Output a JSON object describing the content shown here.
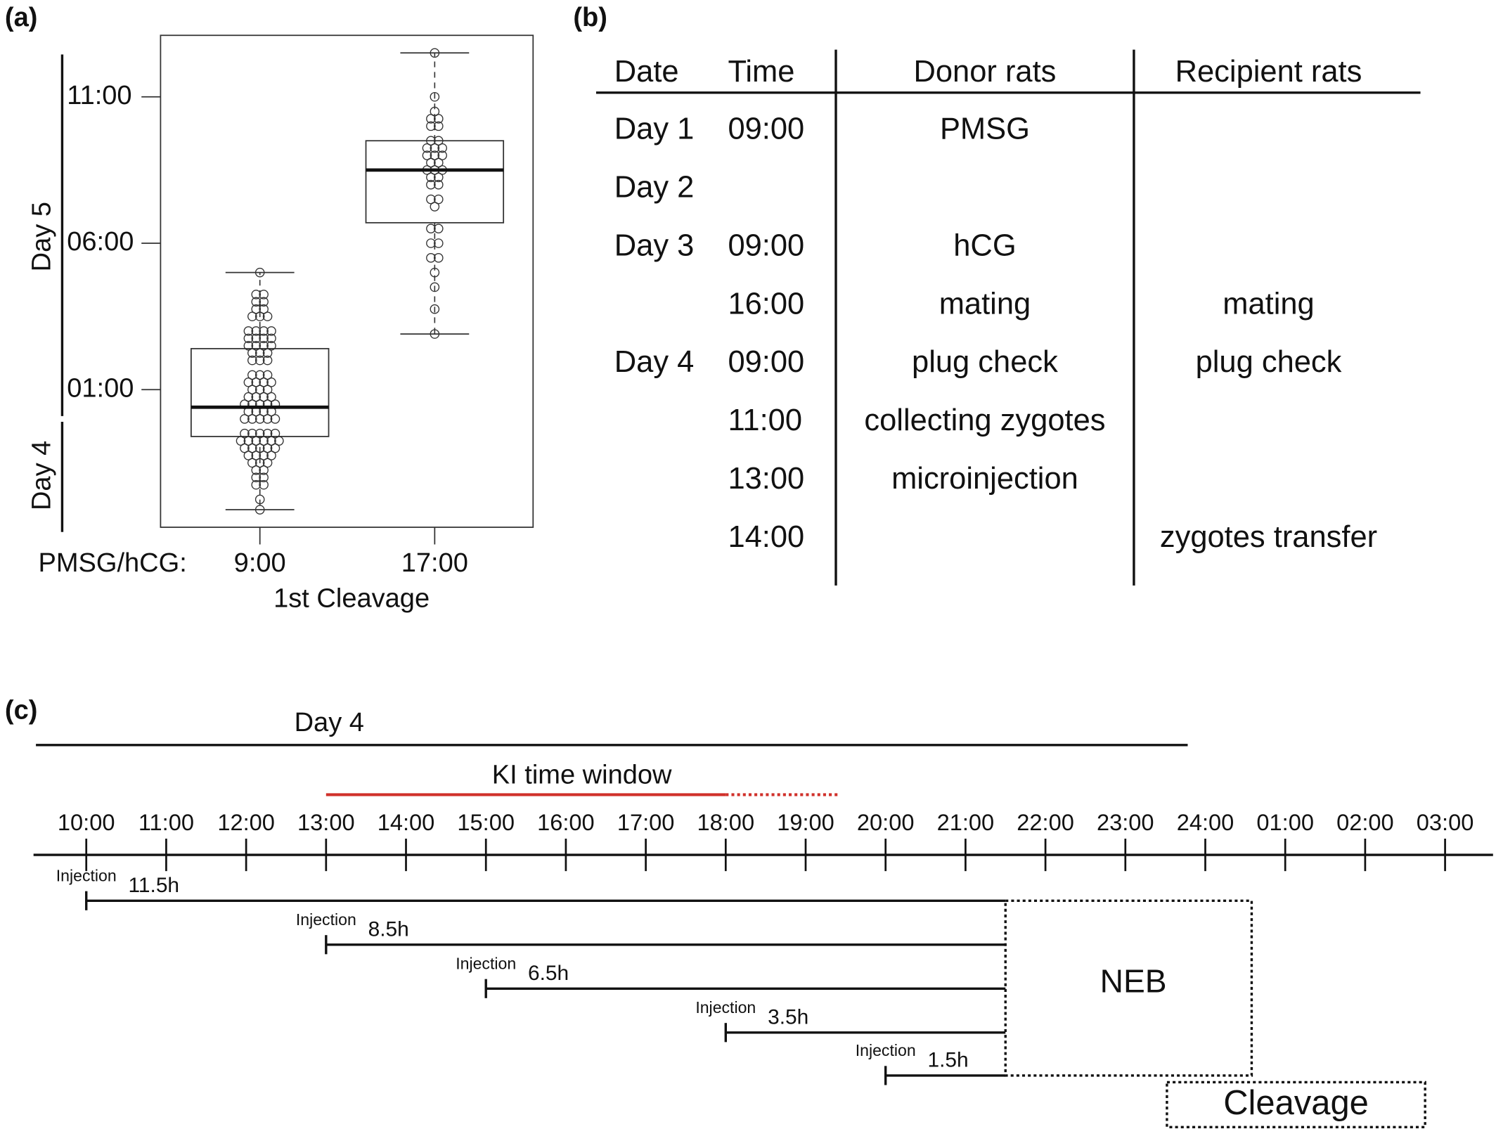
{
  "chart_data": {
    "type": "box",
    "panel_label": "(a)",
    "x_prefix_label": "PMSG/hCG:",
    "xlabel": "1st Cleavage",
    "categories": [
      "9:00",
      "17:00"
    ],
    "boxes": [
      {
        "min": 20.9,
        "q1": 23.4,
        "median": 24.4,
        "q3": 26.4,
        "max": 29,
        "points": [
          29,
          28.25,
          28.25,
          28,
          28,
          27.75,
          27.75,
          27.5,
          27.5,
          27.5,
          27,
          27,
          27,
          27,
          26.75,
          26.75,
          26.75,
          26.75,
          26.5,
          26.5,
          26.5,
          26.5,
          26.25,
          26.25,
          26.25,
          26,
          26,
          26,
          25.5,
          25.5,
          25.5,
          25.25,
          25.25,
          25.25,
          25.25,
          25,
          25,
          25,
          24.75,
          24.75,
          24.75,
          24.75,
          24.5,
          24.5,
          24.5,
          24.5,
          24.5,
          24.25,
          24.25,
          24.25,
          24.25,
          24,
          24,
          24,
          24,
          24,
          23.5,
          23.5,
          23.5,
          23.5,
          23.5,
          23.25,
          23.25,
          23.25,
          23.25,
          23.25,
          23.25,
          23,
          23,
          23,
          23,
          23,
          22.75,
          22.75,
          22.75,
          22.75,
          22.5,
          22.5,
          22.5,
          22.25,
          22.25,
          22,
          22,
          21.75,
          21.75,
          21.25,
          20.9
        ]
      },
      {
        "min": 26.9,
        "q1": 30.7,
        "median": 32.5,
        "q3": 33.5,
        "max": 36.5,
        "points": [
          36.5,
          35,
          34.5,
          34.25,
          34.25,
          34,
          34,
          33.5,
          33.5,
          33.25,
          33.25,
          33.25,
          33,
          33,
          33,
          32.75,
          32.75,
          32.5,
          32.5,
          32.5,
          32.25,
          32.25,
          32,
          32,
          31.5,
          31.5,
          31.25,
          30.5,
          30.5,
          30,
          30,
          29.5,
          29.5,
          29,
          28.5,
          27.75,
          26.9
        ]
      }
    ],
    "ylim": [
      20.3,
      37.1
    ],
    "yticks": [
      {
        "value": 25,
        "label": "01:00"
      },
      {
        "value": 30,
        "label": "06:00"
      },
      {
        "value": 35,
        "label": "11:00"
      }
    ],
    "day_labels": [
      "Day 5",
      "Day 4"
    ],
    "day_boundary": 24
  },
  "table": {
    "panel_label": "(b)",
    "header": [
      "Date",
      "Time",
      "Donor rats",
      "Recipient rats"
    ],
    "rows": [
      [
        "Day 1",
        "09:00",
        "PMSG",
        null
      ],
      [
        "Day 2",
        null,
        null,
        null
      ],
      [
        "Day 3",
        "09:00",
        "hCG",
        null
      ],
      [
        null,
        "16:00",
        "mating",
        "mating"
      ],
      [
        "Day 4",
        "09:00",
        "plug check",
        "plug check"
      ],
      [
        null,
        "11:00",
        "collecting zygotes",
        null
      ],
      [
        null,
        "13:00",
        "microinjection",
        null
      ],
      [
        null,
        "14:00",
        null,
        "zygotes transfer"
      ]
    ]
  },
  "timeline": {
    "panel_label": "(c)",
    "xlim": [
      9.34,
      27.6
    ],
    "xticks": [
      {
        "value": 10,
        "label": "10:00"
      },
      {
        "value": 11,
        "label": "11:00"
      },
      {
        "value": 12,
        "label": "12:00"
      },
      {
        "value": 13,
        "label": "13:00"
      },
      {
        "value": 14,
        "label": "14:00"
      },
      {
        "value": 15,
        "label": "15:00"
      },
      {
        "value": 16,
        "label": "16:00"
      },
      {
        "value": 17,
        "label": "17:00"
      },
      {
        "value": 18,
        "label": "18:00"
      },
      {
        "value": 19,
        "label": "19:00"
      },
      {
        "value": 20,
        "label": "20:00"
      },
      {
        "value": 21,
        "label": "21:00"
      },
      {
        "value": 22,
        "label": "22:00"
      },
      {
        "value": 23,
        "label": "23:00"
      },
      {
        "value": 24,
        "label": "24:00"
      },
      {
        "value": 25,
        "label": "01:00"
      },
      {
        "value": 26,
        "label": "02:00"
      },
      {
        "value": 27,
        "label": "03:00"
      }
    ],
    "day": {
      "label": "Day 4",
      "start": 9.37,
      "end": 23.78
    },
    "window": {
      "label": "KI time window",
      "start": 13,
      "end": 18,
      "dotted_end": 19.4,
      "color": "#d0302a"
    },
    "injections": [
      {
        "label": "Injection",
        "start": 10,
        "duration": 11.5,
        "duration_label": "11.5h"
      },
      {
        "label": "Injection",
        "start": 13,
        "duration": 8.5,
        "duration_label": "8.5h"
      },
      {
        "label": "Injection",
        "start": 15,
        "duration": 6.5,
        "duration_label": "6.5h"
      },
      {
        "label": "Injection",
        "start": 18,
        "duration": 3.5,
        "duration_label": "3.5h"
      },
      {
        "label": "Injection",
        "start": 20,
        "duration": 1.5,
        "duration_label": "1.5h"
      }
    ],
    "neb": {
      "label": "NEB",
      "start": 21.5,
      "end": 24.58
    },
    "cleavage": {
      "label": "Cleavage",
      "start": 23.52,
      "end": 26.75
    }
  }
}
